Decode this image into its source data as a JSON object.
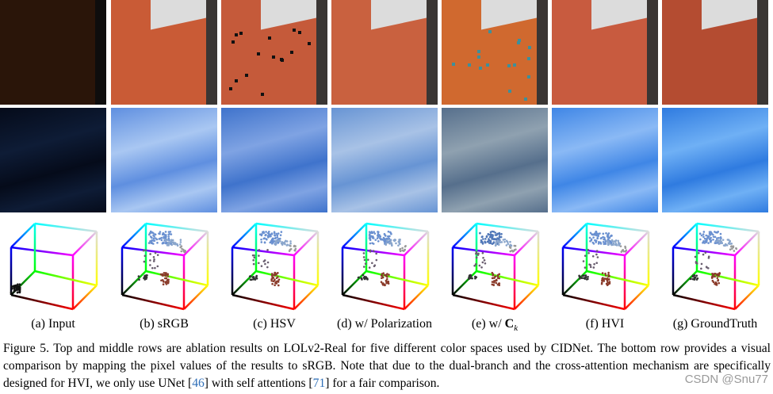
{
  "columns": [
    {
      "label": "(a) Input"
    },
    {
      "label": "(b) sRGB"
    },
    {
      "label": "(c) HSV"
    },
    {
      "label": "(d) w/ Polarization"
    },
    {
      "label": "(e) w/ ",
      "symbol": "C",
      "subscript": "k"
    },
    {
      "label": "(f) HVI"
    },
    {
      "label": "(g) GroundTruth"
    }
  ],
  "caption": {
    "text_before_ref1": "Figure 5. Top and middle rows are ablation results on LOLv2-Real for five different color spaces used by CIDNet. The bottom row provides a visual comparison by mapping the pixel values of the results to sRGB. Note that due to the dual-branch and the cross-attention mechanism are specifically designed for HVI, we only use UNet [",
    "ref1": "46",
    "text_between_refs": "] with self attentions [",
    "ref2": "71",
    "text_after_ref2": "] for a fair comparison."
  },
  "watermark": "CSDN @Snu77"
}
